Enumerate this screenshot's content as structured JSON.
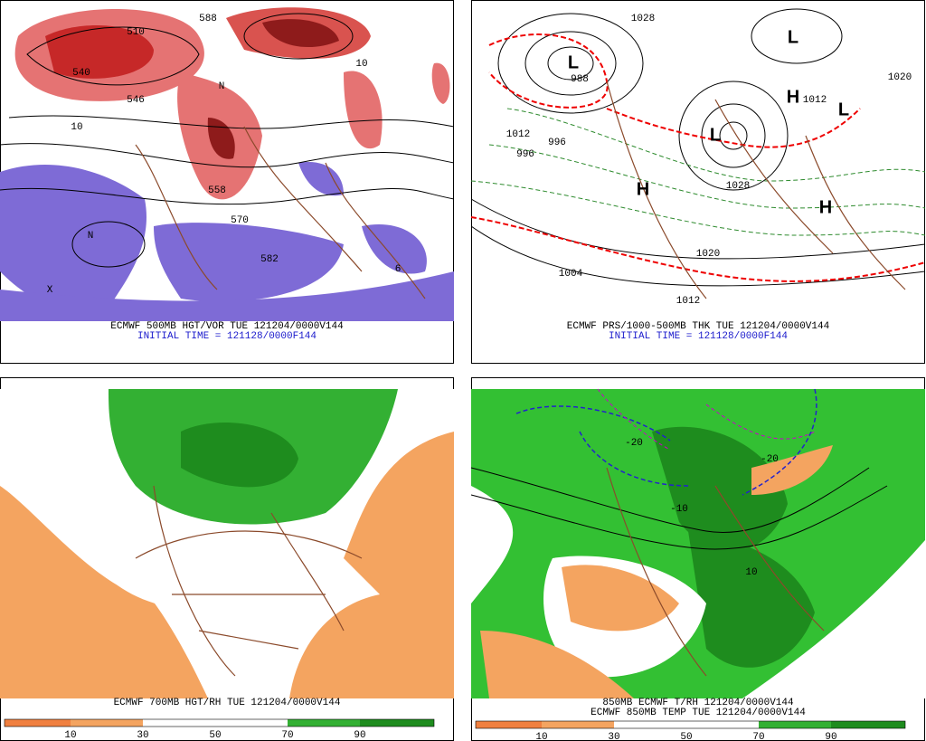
{
  "panels": [
    {
      "title": "ECMWF 500MB HGT/VOR TUE 121204/0000V144",
      "subtitle": "INITIAL TIME = 121128/0000F144",
      "labels": [
        "540",
        "546",
        "510",
        "558",
        "570",
        "582",
        "588",
        "10",
        "10",
        "N",
        "N",
        "X",
        "6"
      ]
    },
    {
      "title": "ECMWF PRS/1000-500MB THK TUE 121204/0000V144",
      "subtitle": "INITIAL TIME = 121128/0000F144",
      "labels": [
        "L",
        "L",
        "L",
        "L",
        "H",
        "H",
        "H",
        "988",
        "1028",
        "1012",
        "996",
        "996",
        "1004",
        "1020",
        "1012",
        "1012",
        "1020",
        "1028"
      ]
    },
    {
      "title": "ECMWF 700MB HGT/RH TUE 121204/0000V144",
      "colorbar": [
        10,
        30,
        50,
        70,
        90
      ]
    },
    {
      "title": "850MB ECMWF T/RH 121204/0000V144",
      "subtitle": "ECMWF 850MB TEMP TUE 121204/0000V144",
      "labels": [
        "-20",
        "-20",
        "-10",
        "10"
      ],
      "colorbar": [
        10,
        30,
        50,
        70,
        90
      ]
    }
  ]
}
